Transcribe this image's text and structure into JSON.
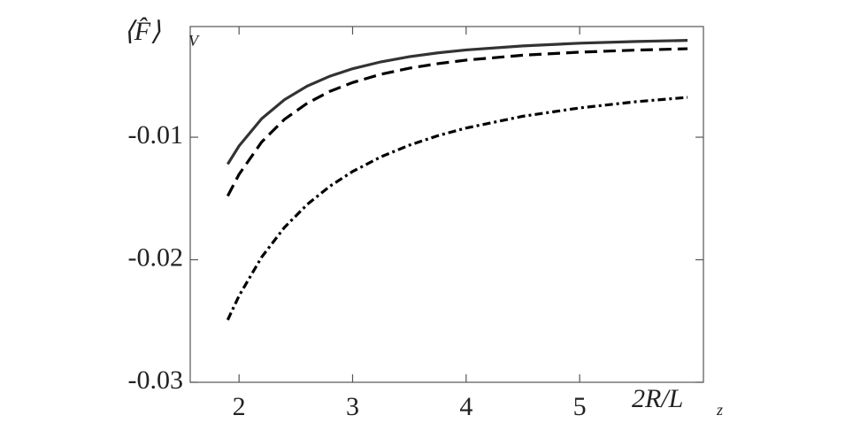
{
  "chart_data": {
    "type": "line",
    "ylabel": "⟨F̂⟩",
    "ylabel_sub": "V",
    "xlabel": "2R/L",
    "xlabel_sub": "z",
    "x": [
      1.9,
      2.0,
      2.2,
      2.4,
      2.6,
      2.8,
      3.0,
      3.25,
      3.5,
      3.75,
      4.0,
      4.5,
      5.0,
      5.5,
      5.95
    ],
    "series": [
      {
        "color": "#333333",
        "dash": "solid",
        "values": [
          -0.0122,
          -0.01071,
          -0.00848,
          -0.00694,
          -0.00583,
          -0.00502,
          -0.00441,
          -0.00385,
          -0.00343,
          -0.00312,
          -0.00288,
          -0.00255,
          -0.00233,
          -0.00219,
          -0.0021
        ]
      },
      {
        "color": "#000000",
        "dash": "dashed",
        "values": [
          -0.0148,
          -0.01303,
          -0.01038,
          -0.00854,
          -0.00723,
          -0.00626,
          -0.00554,
          -0.00486,
          -0.00437,
          -0.004,
          -0.00371,
          -0.00331,
          -0.00306,
          -0.00289,
          -0.00278
        ]
      },
      {
        "color": "#000000",
        "dash": "dashdot",
        "values": [
          -0.02491,
          -0.02294,
          -0.01977,
          -0.01736,
          -0.01549,
          -0.014,
          -0.0128,
          -0.0116,
          -0.01065,
          -0.00988,
          -0.00925,
          -0.00829,
          -0.00761,
          -0.0071,
          -0.00675
        ]
      }
    ],
    "xlim": [
      1.57,
      6.09
    ],
    "ylim": [
      -0.03,
      -0.00097
    ],
    "xticks": [
      2,
      3,
      4,
      5
    ],
    "yticks": [
      -0.03,
      -0.02,
      -0.01
    ]
  }
}
